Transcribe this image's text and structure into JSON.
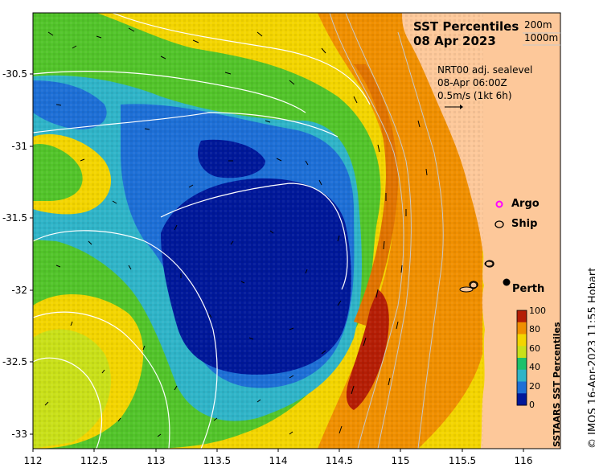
{
  "title": {
    "line1": "SST Percentiles",
    "line2": "08 Apr 2023"
  },
  "contour_legend": {
    "item1": "200m",
    "item2": "1000m"
  },
  "velocity_info": {
    "line1": "NRT00 adj. sealevel",
    "line2": "08-Apr 06:00Z",
    "line3": "0.5m/s (1kt 6h)"
  },
  "markers": {
    "argo": "Argo",
    "ship": "Ship",
    "city": "Perth"
  },
  "colorbar": {
    "title": "SSTAARS SST Percentiles",
    "ticks": [
      "100",
      "80",
      "60",
      "40",
      "20",
      "0"
    ],
    "colors": [
      "#00189a",
      "#1d6fd6",
      "#2fb4c8",
      "#1cc16b",
      "#c9e019",
      "#f3d500",
      "#f08f00",
      "#b51e05"
    ]
  },
  "axes": {
    "y_ticks": [
      "-30.5",
      "-31",
      "-31.5",
      "-32",
      "-32.5",
      "-33"
    ],
    "x_ticks": [
      "112",
      "112.5",
      "113",
      "113.5",
      "114",
      "114.5",
      "115",
      "115.5",
      "116"
    ]
  },
  "credit": "© IMOS 16-Apr-2023 11:55 Hobart",
  "colors": {
    "land": "#fdc89a",
    "frame": "#000000"
  }
}
